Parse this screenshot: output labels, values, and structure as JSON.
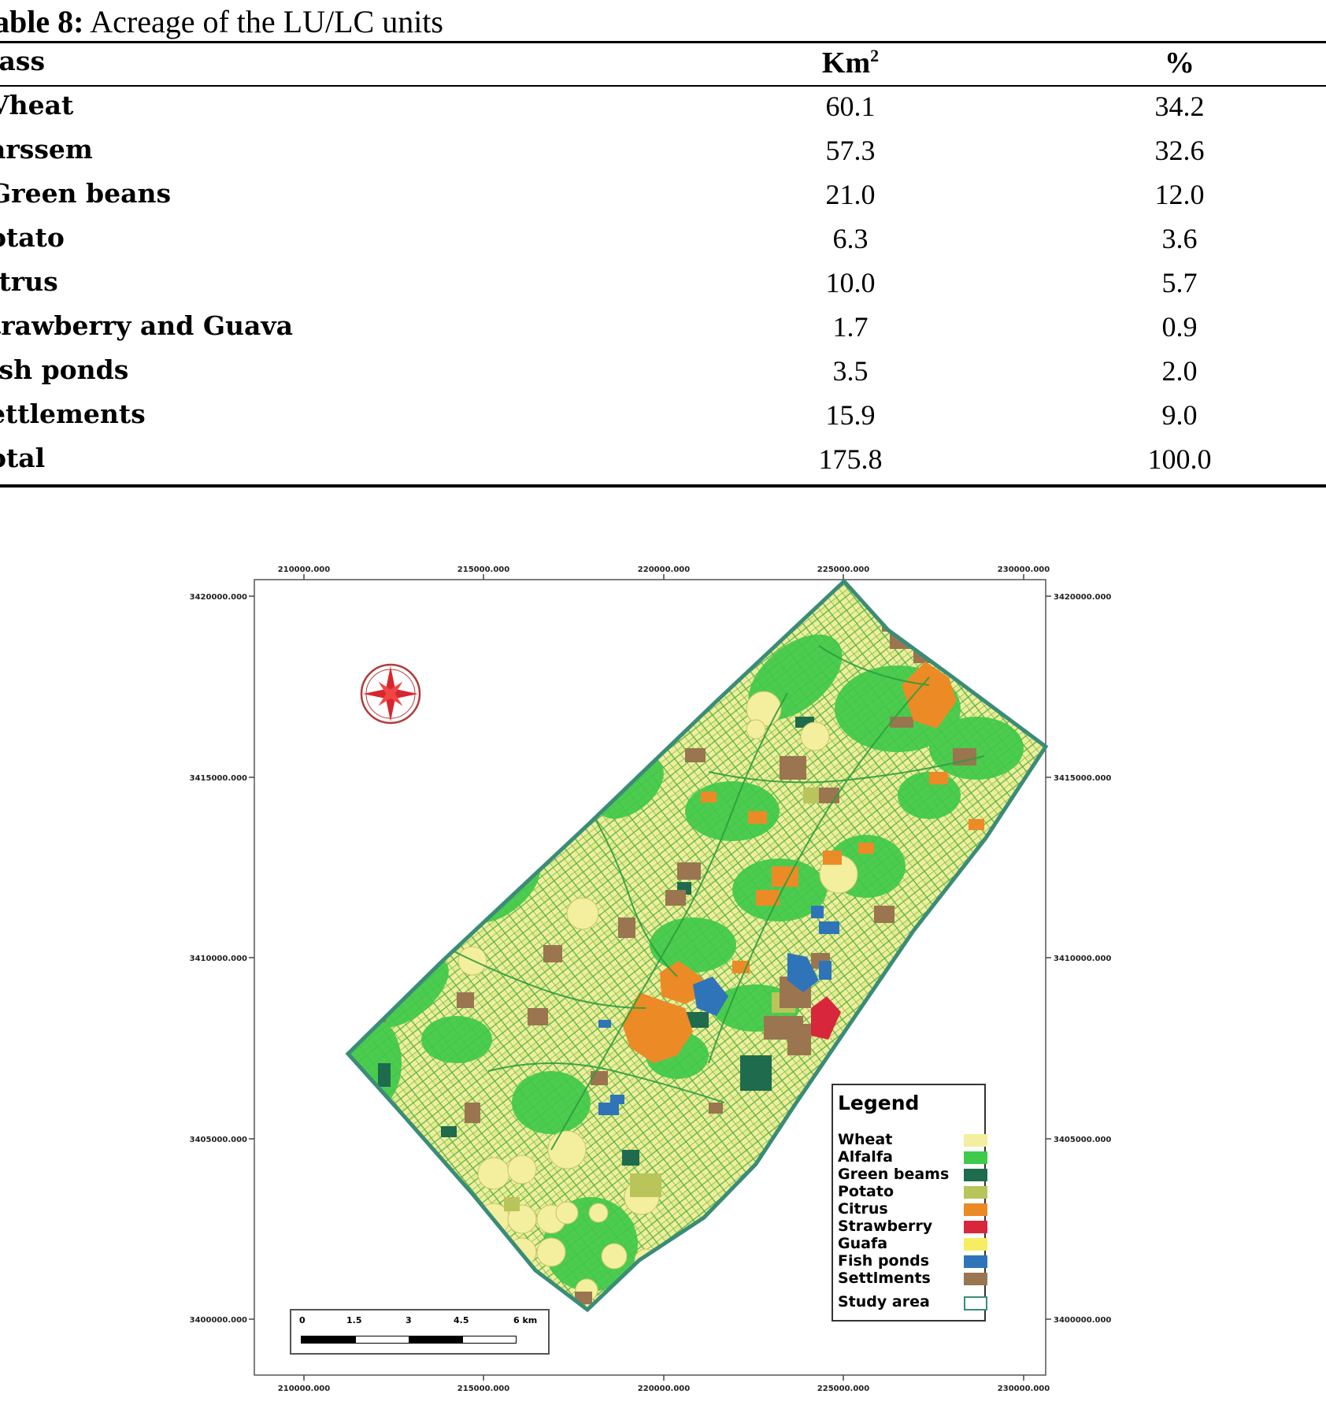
{
  "table": {
    "caption_label": "able 8:",
    "caption_text": " Acreage of the LU/LC units",
    "headers": {
      "class": "lass",
      "km": "Km",
      "km_sup": "2",
      "pct": "%"
    },
    "rows": [
      {
        "class": "Vheat",
        "km": "60.1",
        "pct": "34.2"
      },
      {
        "class": "arssem",
        "km": "57.3",
        "pct": "32.6"
      },
      {
        "class": "Green beans",
        "km": "21.0",
        "pct": "12.0"
      },
      {
        "class": "otato",
        "km": "6.3",
        "pct": "3.6"
      },
      {
        "class": "itrus",
        "km": "10.0",
        "pct": "5.7"
      },
      {
        "class": "trawberry and Guava",
        "km": "1.7",
        "pct": "0.9"
      },
      {
        "class": "ish ponds",
        "km": "3.5",
        "pct": "2.0"
      },
      {
        "class": "ettlements",
        "km": "15.9",
        "pct": "9.0"
      },
      {
        "class": "otal",
        "km": "175.8",
        "pct": "100.0"
      }
    ]
  },
  "map": {
    "x_ticks": [
      "210000.000",
      "215000.000",
      "220000.000",
      "225000.000",
      "230000.000"
    ],
    "y_ticks": [
      "3420000.000",
      "3415000.000",
      "3410000.000",
      "3405000.000",
      "3400000.000"
    ],
    "legend": {
      "title": "Legend",
      "items": [
        {
          "label": "Wheat",
          "color": "#f3ef9e"
        },
        {
          "label": "Alfalfa",
          "color": "#3ecb4b"
        },
        {
          "label": "Green beams",
          "color": "#1f6b4d"
        },
        {
          "label": "Potato",
          "color": "#b9c45a"
        },
        {
          "label": "Citrus",
          "color": "#ec8a26"
        },
        {
          "label": "Strawberry",
          "color": "#d8263c"
        },
        {
          "label": "Guafa",
          "color": "#f5ee63"
        },
        {
          "label": "Fish ponds",
          "color": "#2f74b8"
        },
        {
          "label": "Settlments",
          "color": "#9a7550"
        },
        {
          "label": "Study area",
          "color": "#ffffff"
        }
      ]
    },
    "scale_labels": [
      "0",
      "1.5",
      "3",
      "4.5",
      "6 km"
    ],
    "compass_icon": "north-arrow-icon"
  }
}
